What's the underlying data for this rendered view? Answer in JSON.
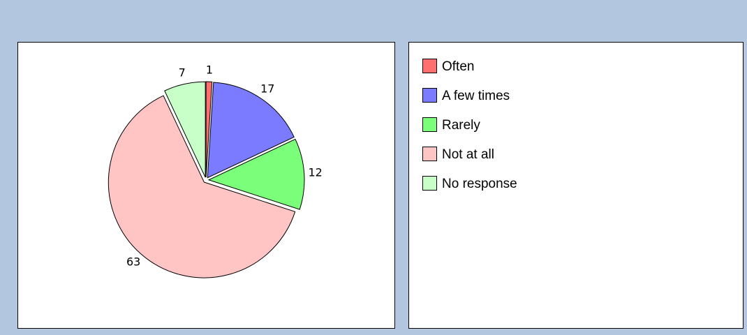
{
  "chart_data": {
    "type": "pie",
    "categories": [
      "Often",
      "A few times",
      "Rarely",
      "Not at all",
      "No response"
    ],
    "values": [
      1,
      17,
      12,
      63,
      7
    ],
    "colors": [
      "#ff6f6f",
      "#7b7bff",
      "#7bff7b",
      "#ffc4c4",
      "#c8ffc8"
    ]
  }
}
